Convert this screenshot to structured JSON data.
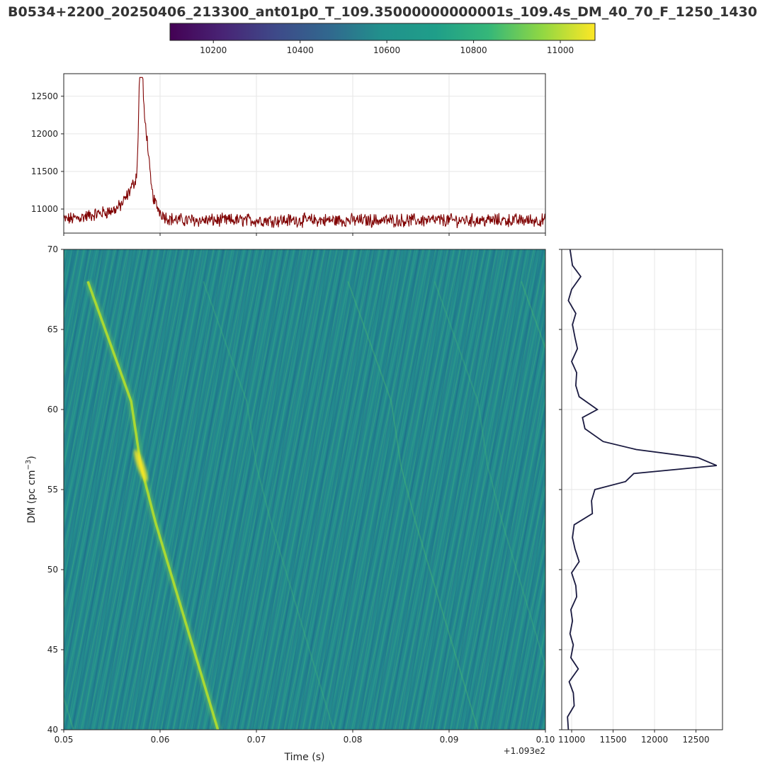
{
  "title": "B0534+2200_20250406_213300_ant01p0_T_109.35000000000001s_109.4s_DM_40_70_F_1250_1430",
  "colors": {
    "timeseries": "#7f0000",
    "dm_curve": "#1a1a40",
    "grid": "#e6e6e6",
    "axes": "#222222"
  },
  "chart_data": [
    {
      "type": "colorbar",
      "colormap": "viridis",
      "range": [
        10100,
        11080
      ],
      "ticks": [
        10200,
        10400,
        10600,
        10800,
        11000
      ],
      "tick_labels": [
        "10200",
        "10400",
        "10600",
        "10800",
        "11000"
      ]
    },
    {
      "type": "line",
      "name": "time-series",
      "xlim": [
        0.05,
        0.1
      ],
      "ylim": [
        10680,
        12800
      ],
      "yticks": [
        11000,
        11500,
        12000,
        12500
      ],
      "ytick_labels": [
        "11000",
        "11500",
        "12000",
        "12500"
      ],
      "baseline": 10850,
      "peak": {
        "x": 0.058,
        "y": 12750
      },
      "secondary_peak": {
        "x": 0.0585,
        "y": 11700
      },
      "grid": true,
      "xticks_shown": false
    },
    {
      "type": "heatmap",
      "name": "dm-time",
      "xlim": [
        0.05,
        0.1
      ],
      "ylim": [
        40,
        70
      ],
      "xticks": [
        0.05,
        0.06,
        0.07,
        0.08,
        0.09,
        0.1
      ],
      "xtick_labels": [
        "0.05",
        "0.06",
        "0.07",
        "0.08",
        "0.09",
        "0.10"
      ],
      "yticks": [
        40,
        45,
        50,
        55,
        60,
        65,
        70
      ],
      "ytick_labels": [
        "40",
        "45",
        "50",
        "55",
        "60",
        "65",
        "70"
      ],
      "xlabel": "Time (s)",
      "ylabel": "DM (pc cm",
      "ylabel_sup": "−3",
      "ylabel_close": ")",
      "offset_text": "+1.093e2",
      "signal_track": [
        {
          "t": 0.0525,
          "dm": 68.0
        },
        {
          "t": 0.057,
          "dm": 60.5
        },
        {
          "t": 0.058,
          "dm": 56.5
        },
        {
          "t": 0.0595,
          "dm": 53.0
        },
        {
          "t": 0.0625,
          "dm": 47.0
        },
        {
          "t": 0.066,
          "dm": 40.0
        }
      ],
      "colormap": "viridis"
    },
    {
      "type": "line",
      "name": "dm-curve",
      "orientation": "vertical",
      "xlim": [
        10880,
        12820
      ],
      "ylim": [
        40,
        70
      ],
      "xticks": [
        11000,
        11500,
        12000,
        12500
      ],
      "xtick_labels": [
        "11000",
        "11500",
        "12000",
        "12500"
      ],
      "grid": true,
      "yticks_shown": false,
      "points": [
        {
          "dm": 40.0,
          "v": 10960
        },
        {
          "dm": 40.8,
          "v": 10950
        },
        {
          "dm": 41.5,
          "v": 11030
        },
        {
          "dm": 42.3,
          "v": 11020
        },
        {
          "dm": 43.0,
          "v": 10970
        },
        {
          "dm": 43.8,
          "v": 11080
        },
        {
          "dm": 44.5,
          "v": 10990
        },
        {
          "dm": 45.3,
          "v": 11020
        },
        {
          "dm": 46.0,
          "v": 10980
        },
        {
          "dm": 46.8,
          "v": 11010
        },
        {
          "dm": 47.5,
          "v": 10990
        },
        {
          "dm": 48.3,
          "v": 11060
        },
        {
          "dm": 49.0,
          "v": 11050
        },
        {
          "dm": 49.8,
          "v": 11000
        },
        {
          "dm": 50.5,
          "v": 11090
        },
        {
          "dm": 51.3,
          "v": 11040
        },
        {
          "dm": 52.0,
          "v": 11010
        },
        {
          "dm": 52.8,
          "v": 11030
        },
        {
          "dm": 53.5,
          "v": 11250
        },
        {
          "dm": 54.3,
          "v": 11240
        },
        {
          "dm": 55.0,
          "v": 11280
        },
        {
          "dm": 55.5,
          "v": 11650
        },
        {
          "dm": 56.0,
          "v": 11750
        },
        {
          "dm": 56.5,
          "v": 12750
        },
        {
          "dm": 57.0,
          "v": 12520
        },
        {
          "dm": 57.5,
          "v": 11780
        },
        {
          "dm": 58.0,
          "v": 11380
        },
        {
          "dm": 58.8,
          "v": 11160
        },
        {
          "dm": 59.5,
          "v": 11130
        },
        {
          "dm": 60.0,
          "v": 11310
        },
        {
          "dm": 60.8,
          "v": 11090
        },
        {
          "dm": 61.5,
          "v": 11050
        },
        {
          "dm": 62.3,
          "v": 11060
        },
        {
          "dm": 63.0,
          "v": 11000
        },
        {
          "dm": 63.8,
          "v": 11070
        },
        {
          "dm": 64.5,
          "v": 11040
        },
        {
          "dm": 65.3,
          "v": 11010
        },
        {
          "dm": 66.0,
          "v": 11050
        },
        {
          "dm": 66.8,
          "v": 10960
        },
        {
          "dm": 67.5,
          "v": 11000
        },
        {
          "dm": 68.3,
          "v": 11110
        },
        {
          "dm": 69.0,
          "v": 11010
        },
        {
          "dm": 70.0,
          "v": 10980
        }
      ]
    }
  ]
}
